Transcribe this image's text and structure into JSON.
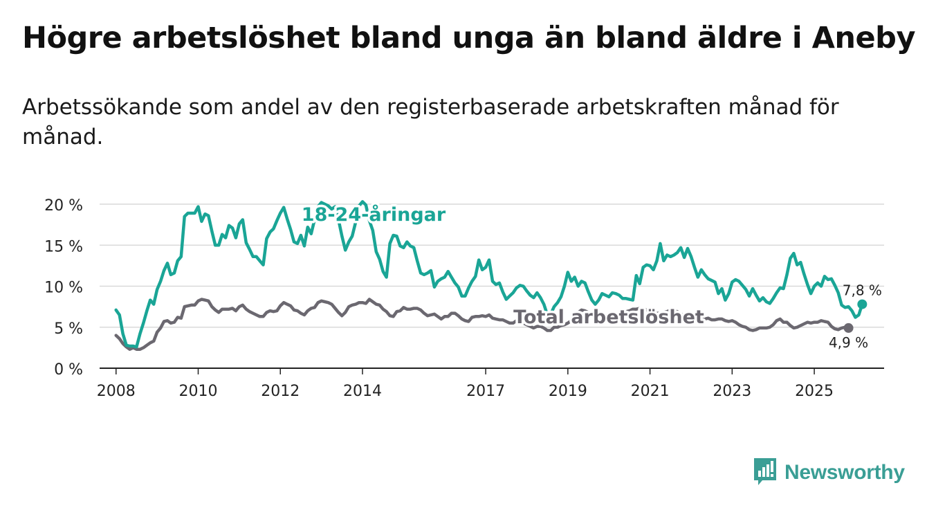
{
  "header": {
    "title": "Högre arbetslöshet bland unga än bland äldre i Aneby",
    "subtitle": "Arbetssökande som andel av den registerbaserade arbetskraften månad för månad."
  },
  "brand": {
    "name": "Newsworthy",
    "icon": "bar-chart-speech-icon"
  },
  "colors": {
    "youth": "#1aa596",
    "total": "#6b6870",
    "grid": "#d9d9d9",
    "axis": "#222222"
  },
  "chart_data": {
    "type": "line",
    "title": "Högre arbetslöshet bland unga än bland äldre i Aneby",
    "subtitle": "Arbetssökande som andel av den registerbaserade arbetskraften månad för månad.",
    "xlabel": "",
    "ylabel": "",
    "ylim": [
      0,
      20
    ],
    "yticks": [
      0,
      5,
      10,
      15,
      20
    ],
    "ytick_labels": [
      "0 %",
      "5 %",
      "10 %",
      "15 %",
      "20 %"
    ],
    "xticks": [
      "2008",
      "2010",
      "2012",
      "2014",
      "2017",
      "2019",
      "2021",
      "2023",
      "2025"
    ],
    "x_start": "2008-01",
    "x_step": "month",
    "grid": true,
    "series": [
      {
        "name": "18-24-åringar",
        "label": "18-24-åringar",
        "end_label": "7,8 %",
        "values": [
          7.1,
          6.5,
          4.2,
          2.8,
          2.7,
          2.7,
          2.6,
          4.2,
          5.5,
          7.0,
          8.3,
          7.8,
          9.6,
          10.6,
          11.9,
          12.8,
          11.4,
          11.6,
          13.1,
          13.6,
          18.5,
          18.9,
          18.9,
          18.9,
          19.7,
          17.9,
          18.8,
          18.6,
          16.7,
          15.0,
          15.0,
          16.3,
          15.9,
          17.4,
          17.1,
          15.9,
          17.6,
          18.1,
          15.3,
          14.5,
          13.6,
          13.6,
          13.1,
          12.6,
          15.8,
          16.6,
          17.0,
          18.0,
          18.9,
          19.6,
          18.2,
          16.9,
          15.4,
          15.2,
          16.2,
          14.9,
          17.2,
          16.4,
          18.1,
          19.7,
          20.2,
          20.0,
          19.8,
          19.4,
          19.7,
          18.1,
          16.1,
          14.4,
          15.4,
          16.1,
          17.8,
          19.8,
          20.3,
          19.9,
          18.0,
          16.8,
          14.2,
          13.3,
          11.8,
          11.1,
          15.2,
          16.2,
          16.1,
          14.9,
          14.7,
          15.4,
          14.9,
          14.7,
          13.1,
          11.6,
          11.4,
          11.6,
          11.9,
          9.9,
          10.6,
          10.9,
          11.1,
          11.8,
          11.1,
          10.4,
          9.9,
          8.8,
          8.8,
          9.8,
          10.6,
          11.2,
          13.2,
          12.0,
          12.3,
          13.2,
          10.6,
          10.2,
          10.4,
          9.3,
          8.4,
          8.8,
          9.2,
          9.8,
          10.1,
          10.0,
          9.4,
          8.9,
          8.6,
          9.2,
          8.6,
          7.8,
          6.5,
          6.6,
          7.5,
          8.0,
          8.7,
          10.0,
          11.7,
          10.6,
          11.1,
          10.0,
          10.6,
          10.4,
          9.3,
          8.3,
          7.8,
          8.3,
          9.1,
          8.9,
          8.7,
          9.2,
          9.1,
          8.9,
          8.5,
          8.5,
          8.4,
          8.3,
          11.3,
          10.3,
          12.3,
          12.6,
          12.5,
          12.0,
          13.1,
          15.2,
          13.1,
          13.8,
          13.6,
          13.8,
          14.1,
          14.7,
          13.5,
          14.6,
          13.6,
          12.3,
          11.1,
          12.0,
          11.4,
          10.9,
          10.7,
          10.5,
          9.1,
          9.7,
          8.3,
          9.1,
          10.5,
          10.8,
          10.6,
          10.1,
          9.6,
          8.8,
          9.7,
          8.9,
          8.2,
          8.6,
          8.1,
          7.9,
          8.5,
          9.2,
          9.8,
          9.7,
          11.4,
          13.4,
          14.0,
          12.6,
          12.9,
          11.5,
          10.2,
          9.1,
          10.0,
          10.4,
          10.0,
          11.2,
          10.8,
          10.9,
          10.1,
          9.2,
          7.7,
          7.4,
          7.5,
          7.0,
          6.2,
          6.5,
          7.8
        ]
      },
      {
        "name": "Total arbetslöshet",
        "label": "Total arbetslöshet",
        "end_label": "4,9 %",
        "values": [
          4.0,
          3.6,
          3.0,
          2.6,
          2.3,
          2.5,
          2.3,
          2.3,
          2.5,
          2.8,
          3.1,
          3.3,
          4.4,
          4.9,
          5.7,
          5.8,
          5.5,
          5.6,
          6.2,
          6.1,
          7.5,
          7.6,
          7.7,
          7.7,
          8.2,
          8.4,
          8.3,
          8.2,
          7.5,
          7.1,
          6.8,
          7.2,
          7.2,
          7.2,
          7.3,
          7.0,
          7.5,
          7.7,
          7.2,
          6.9,
          6.7,
          6.5,
          6.3,
          6.3,
          6.8,
          7.0,
          6.9,
          7.0,
          7.6,
          8.0,
          7.8,
          7.6,
          7.1,
          7.0,
          6.7,
          6.5,
          7.0,
          7.3,
          7.4,
          8.0,
          8.2,
          8.1,
          8.0,
          7.8,
          7.3,
          6.8,
          6.4,
          6.8,
          7.5,
          7.7,
          7.8,
          8.0,
          8.0,
          7.9,
          8.4,
          8.1,
          7.8,
          7.7,
          7.2,
          6.9,
          6.4,
          6.3,
          6.9,
          7.0,
          7.4,
          7.2,
          7.2,
          7.3,
          7.3,
          7.1,
          6.7,
          6.4,
          6.5,
          6.6,
          6.3,
          6.0,
          6.3,
          6.3,
          6.7,
          6.7,
          6.4,
          6.0,
          5.8,
          5.7,
          6.2,
          6.3,
          6.3,
          6.4,
          6.3,
          6.5,
          6.1,
          6.0,
          5.9,
          5.9,
          5.7,
          5.5,
          5.5,
          5.8,
          5.6,
          5.5,
          5.3,
          5.1,
          4.9,
          5.1,
          5.1,
          4.9,
          4.6,
          4.6,
          5.0,
          5.0,
          5.2,
          5.3,
          5.5,
          5.8,
          6.5,
          6.8,
          7.1,
          7.0,
          6.8,
          6.6,
          6.4,
          6.1,
          6.4,
          6.3,
          6.4,
          6.2,
          6.4,
          6.5,
          6.7,
          6.9,
          7.0,
          7.2,
          7.2,
          7.3,
          7.3,
          7.1,
          7.0,
          6.9,
          6.7,
          6.7,
          6.8,
          6.9,
          7.1,
          7.0,
          6.9,
          6.6,
          6.5,
          6.3,
          6.1,
          6.0,
          5.9,
          6.0,
          6.0,
          6.1,
          5.9,
          5.9,
          6.0,
          6.0,
          5.8,
          5.7,
          5.8,
          5.6,
          5.3,
          5.1,
          5.0,
          4.7,
          4.6,
          4.7,
          4.9,
          4.9,
          4.9,
          5.0,
          5.3,
          5.8,
          6.0,
          5.6,
          5.6,
          5.2,
          4.9,
          5.0,
          5.2,
          5.4,
          5.6,
          5.5,
          5.6,
          5.6,
          5.8,
          5.7,
          5.6,
          5.1,
          4.8,
          4.7,
          4.9,
          5.0,
          4.9
        ]
      }
    ]
  }
}
